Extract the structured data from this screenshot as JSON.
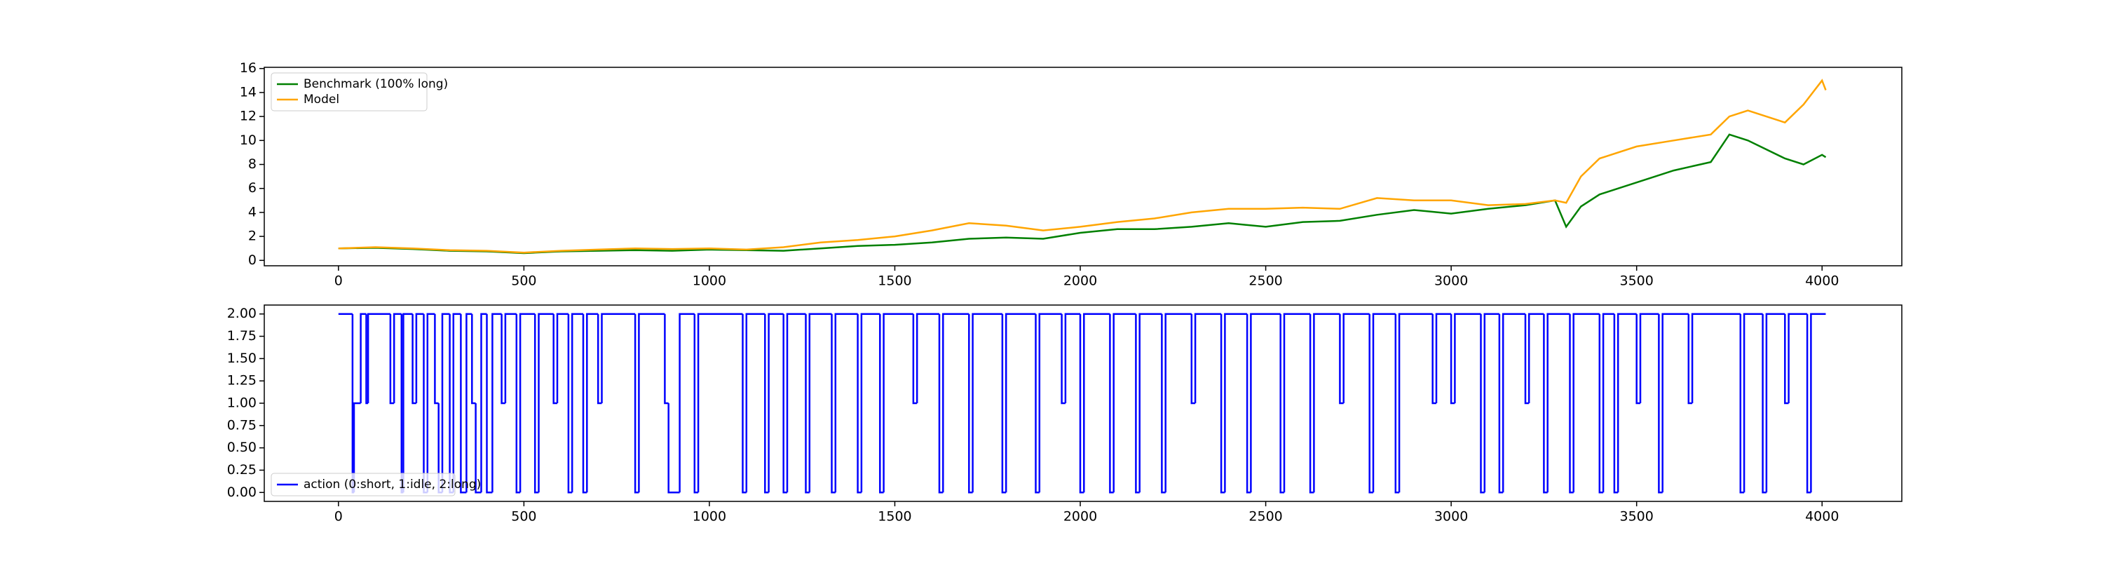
{
  "chart_data": [
    {
      "type": "line",
      "legend": "upper left",
      "xlim": [
        -200,
        4215
      ],
      "ylim": [
        -0.45,
        16.1
      ],
      "xticks": [
        0,
        500,
        1000,
        1500,
        2000,
        2500,
        3000,
        3500,
        4000
      ],
      "yticks": [
        0,
        2,
        4,
        6,
        8,
        10,
        12,
        14,
        16
      ],
      "series": [
        {
          "name": "Benchmark (100% long)",
          "color": "#008000",
          "x": [
            0,
            100,
            200,
            300,
            400,
            500,
            600,
            700,
            800,
            900,
            1000,
            1100,
            1200,
            1300,
            1400,
            1500,
            1600,
            1700,
            1800,
            1900,
            2000,
            2100,
            2200,
            2300,
            2400,
            2500,
            2600,
            2700,
            2800,
            2900,
            3000,
            3100,
            3200,
            3280,
            3310,
            3350,
            3400,
            3500,
            3600,
            3700,
            3750,
            3800,
            3900,
            3950,
            4000,
            4010
          ],
          "values": [
            1.0,
            1.05,
            0.95,
            0.8,
            0.75,
            0.6,
            0.75,
            0.8,
            0.85,
            0.8,
            0.9,
            0.85,
            0.8,
            1.0,
            1.2,
            1.3,
            1.5,
            1.8,
            1.9,
            1.8,
            2.3,
            2.6,
            2.6,
            2.8,
            3.1,
            2.8,
            3.2,
            3.3,
            3.8,
            4.2,
            3.9,
            4.3,
            4.6,
            5.0,
            2.8,
            4.5,
            5.5,
            6.5,
            7.5,
            8.2,
            10.5,
            10.0,
            8.5,
            8.0,
            8.8,
            8.6
          ]
        },
        {
          "name": "Model",
          "color": "#ffa500",
          "x": [
            0,
            100,
            200,
            300,
            400,
            500,
            600,
            700,
            800,
            900,
            1000,
            1100,
            1200,
            1300,
            1400,
            1500,
            1600,
            1700,
            1800,
            1900,
            2000,
            2100,
            2200,
            2300,
            2400,
            2500,
            2600,
            2700,
            2800,
            2900,
            3000,
            3100,
            3200,
            3280,
            3310,
            3350,
            3400,
            3500,
            3600,
            3700,
            3750,
            3800,
            3900,
            3950,
            4000,
            4010
          ],
          "values": [
            1.0,
            1.1,
            1.0,
            0.85,
            0.8,
            0.65,
            0.8,
            0.9,
            1.0,
            0.95,
            1.0,
            0.9,
            1.1,
            1.5,
            1.7,
            2.0,
            2.5,
            3.1,
            2.9,
            2.5,
            2.8,
            3.2,
            3.5,
            4.0,
            4.3,
            4.3,
            4.4,
            4.3,
            5.2,
            5.0,
            5.0,
            4.6,
            4.7,
            5.0,
            4.8,
            7.0,
            8.5,
            9.5,
            10.0,
            10.5,
            12.0,
            12.5,
            11.5,
            13.0,
            15.0,
            14.2
          ]
        }
      ]
    },
    {
      "type": "step",
      "legend": "lower left",
      "xlim": [
        -200,
        4215
      ],
      "ylim": [
        -0.1,
        2.1
      ],
      "xticks": [
        0,
        500,
        1000,
        1500,
        2000,
        2500,
        3000,
        3500,
        4000
      ],
      "yticks": [
        {
          "value": 0,
          "label": "0.00"
        },
        {
          "value": 0.25,
          "label": "0.25"
        },
        {
          "value": 0.5,
          "label": "0.50"
        },
        {
          "value": 0.75,
          "label": "0.75"
        },
        {
          "value": 1,
          "label": "1.00"
        },
        {
          "value": 1.25,
          "label": "1.25"
        },
        {
          "value": 1.5,
          "label": "1.50"
        },
        {
          "value": 1.75,
          "label": "1.75"
        },
        {
          "value": 2,
          "label": "2.00"
        }
      ],
      "series": [
        {
          "name": "action (0:short, 1:idle, 2:long)",
          "color": "#0000ff",
          "x": [
            0,
            38,
            42,
            60,
            75,
            80,
            140,
            150,
            170,
            175,
            200,
            210,
            230,
            240,
            260,
            270,
            280,
            300,
            310,
            330,
            345,
            360,
            370,
            385,
            400,
            415,
            440,
            450,
            480,
            490,
            530,
            540,
            580,
            590,
            620,
            630,
            660,
            670,
            700,
            710,
            800,
            810,
            880,
            890,
            920,
            960,
            970,
            1090,
            1100,
            1150,
            1160,
            1200,
            1210,
            1260,
            1270,
            1330,
            1340,
            1400,
            1410,
            1460,
            1470,
            1550,
            1560,
            1620,
            1630,
            1700,
            1710,
            1790,
            1800,
            1880,
            1890,
            1950,
            1960,
            2000,
            2010,
            2080,
            2090,
            2150,
            2160,
            2220,
            2230,
            2300,
            2310,
            2380,
            2390,
            2450,
            2460,
            2540,
            2550,
            2620,
            2630,
            2700,
            2710,
            2780,
            2790,
            2850,
            2860,
            2950,
            2960,
            3000,
            3010,
            3080,
            3090,
            3130,
            3140,
            3200,
            3210,
            3250,
            3260,
            3320,
            3330,
            3400,
            3410,
            3440,
            3450,
            3500,
            3510,
            3560,
            3570,
            3640,
            3650,
            3780,
            3790,
            3840,
            3850,
            3900,
            3910,
            3960,
            3970,
            4010
          ],
          "values": [
            2,
            0,
            1,
            2,
            1,
            2,
            1,
            2,
            0,
            2,
            1,
            2,
            0,
            2,
            1,
            0,
            2,
            0,
            2,
            0,
            2,
            1,
            0,
            2,
            0,
            2,
            1,
            2,
            0,
            2,
            0,
            2,
            1,
            2,
            0,
            2,
            0,
            2,
            1,
            2,
            0,
            2,
            1,
            0,
            2,
            0,
            2,
            0,
            2,
            0,
            2,
            0,
            2,
            0,
            2,
            0,
            2,
            0,
            2,
            0,
            2,
            1,
            2,
            0,
            2,
            0,
            2,
            0,
            2,
            0,
            2,
            1,
            2,
            0,
            2,
            0,
            2,
            0,
            2,
            0,
            2,
            1,
            2,
            0,
            2,
            0,
            2,
            0,
            2,
            0,
            2,
            1,
            2,
            0,
            2,
            0,
            2,
            1,
            2,
            1,
            2,
            0,
            2,
            0,
            2,
            1,
            2,
            0,
            2,
            0,
            2,
            0,
            2,
            0,
            2,
            1,
            2,
            0,
            2,
            1,
            2,
            0,
            2,
            0,
            2,
            1,
            2,
            0,
            2,
            2
          ]
        }
      ]
    }
  ]
}
